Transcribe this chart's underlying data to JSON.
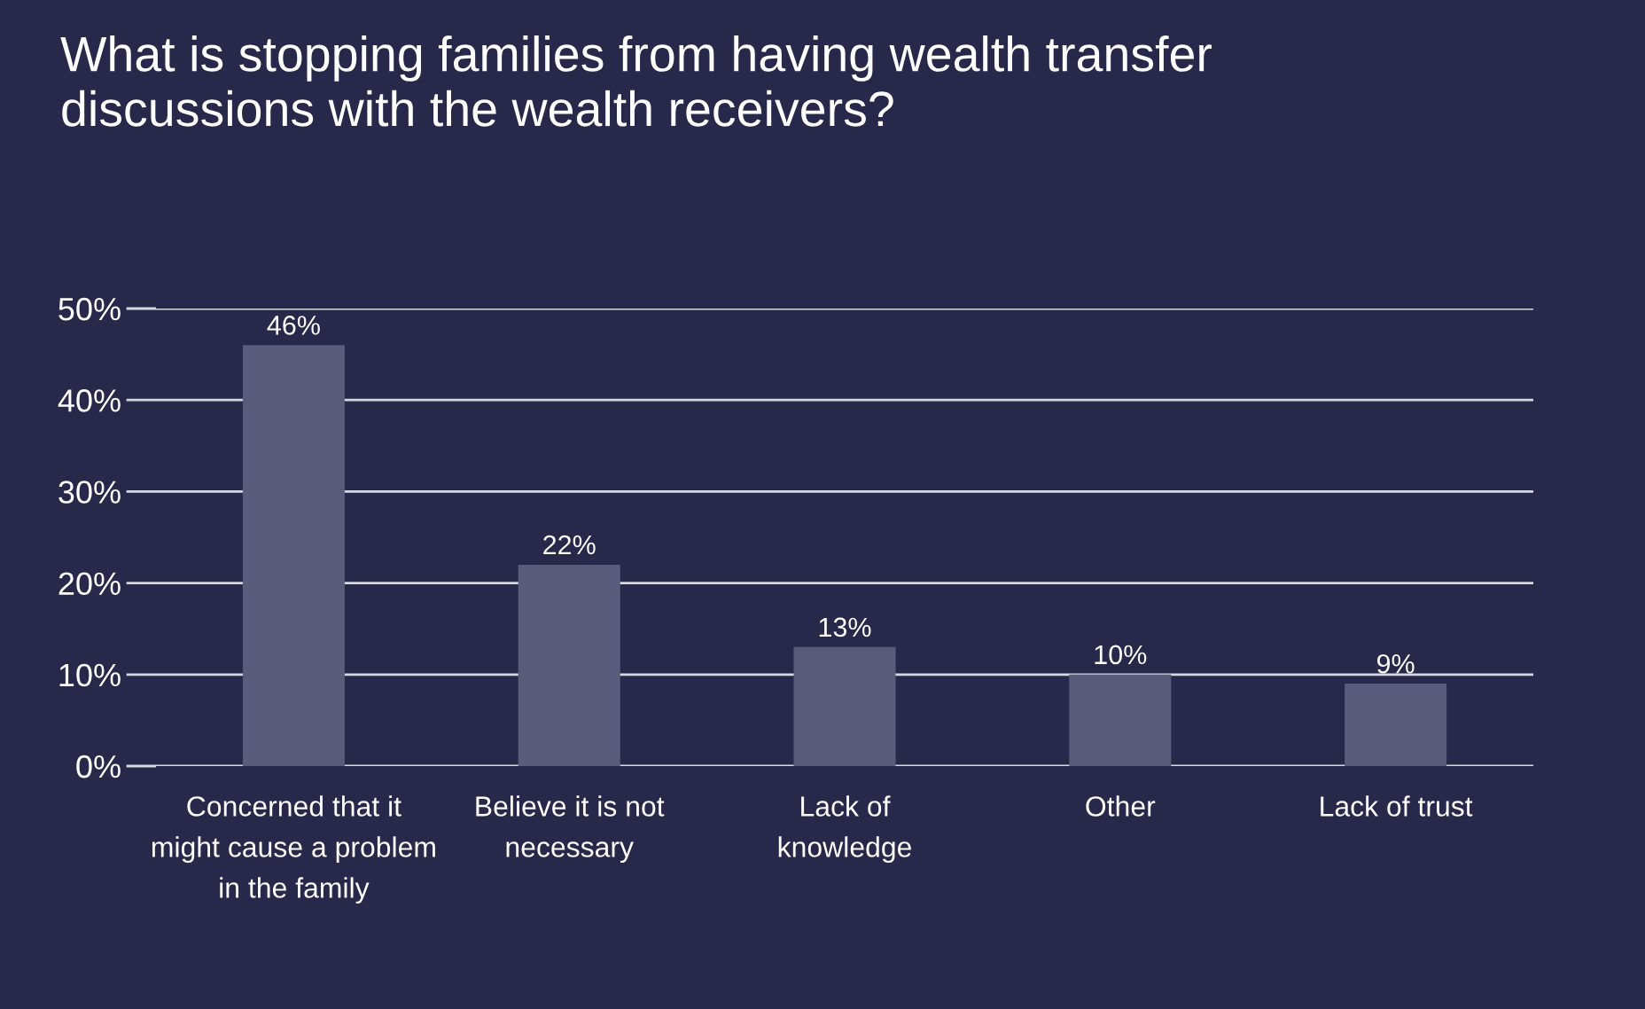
{
  "chart_data": {
    "type": "bar",
    "title": "What is stopping families from having wealth transfer\ndiscussions with the wealth receivers?",
    "categories": [
      "Concerned that it\nmight cause a problem\nin the family",
      "Believe it is not\nnecessary",
      "Lack of\nknowledge",
      "Other",
      "Lack of trust"
    ],
    "values": [
      46,
      22,
      13,
      10,
      9
    ],
    "color": "#5b5c7b",
    "ylim": [
      0,
      50
    ],
    "yticks": [
      {
        "value": 0,
        "label": "0%"
      },
      {
        "value": 10,
        "label": "10%"
      },
      {
        "value": 20,
        "label": "20%"
      },
      {
        "value": 30,
        "label": "30%"
      },
      {
        "value": 40,
        "label": "40%"
      },
      {
        "value": 50,
        "label": "50%"
      }
    ],
    "value_labels": [
      "46%",
      "22%",
      "13%",
      "10%",
      "9%"
    ],
    "grid": "y"
  }
}
